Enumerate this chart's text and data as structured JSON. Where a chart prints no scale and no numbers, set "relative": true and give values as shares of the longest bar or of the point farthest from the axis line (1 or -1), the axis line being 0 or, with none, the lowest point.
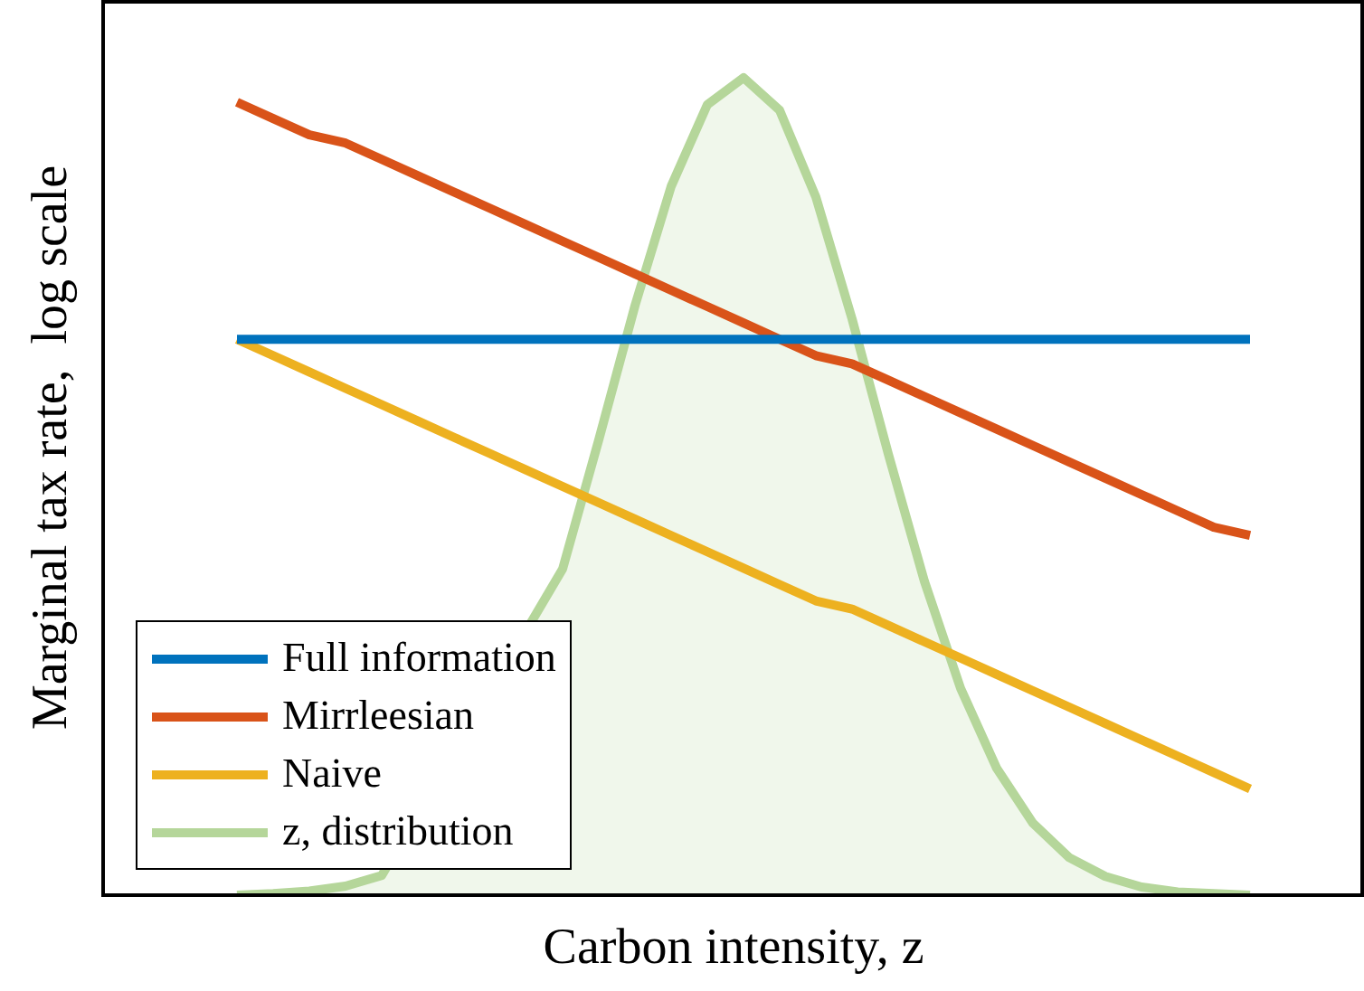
{
  "chart_data": {
    "type": "line",
    "relative": true,
    "xlabel": "Carbon intensity, z",
    "ylabel": "Marginal tax rate,  log scale",
    "legend": "bottom left",
    "marker": "none",
    "categories": [
      null,
      null,
      null,
      null,
      null,
      null,
      null,
      null,
      null,
      null,
      null,
      null,
      null,
      null,
      null,
      null,
      null,
      null,
      null,
      null,
      null,
      null,
      null,
      null,
      null,
      null,
      null,
      null,
      null
    ],
    "series": [
      {
        "name": "Full information",
        "color": "#0072bd",
        "values": [
          0.68,
          0.68,
          0.68,
          0.68,
          0.68,
          0.68,
          0.68,
          0.68,
          0.68,
          0.68,
          0.68,
          0.68,
          0.68,
          0.68,
          0.68,
          0.68,
          0.68,
          0.68,
          0.68,
          0.68,
          0.68,
          0.68,
          0.68,
          0.68,
          0.68,
          0.68,
          0.68,
          0.68,
          0.68
        ]
      },
      {
        "name": "Mirrleesian",
        "color": "#d95319",
        "values": [
          0.97,
          0.95,
          0.93,
          0.92,
          0.9,
          0.88,
          0.86,
          0.84,
          0.82,
          0.8,
          0.78,
          0.76,
          0.74,
          0.72,
          0.7,
          0.68,
          0.66,
          0.65,
          0.63,
          0.61,
          0.59,
          0.57,
          0.55,
          0.53,
          0.51,
          0.49,
          0.47,
          0.45,
          0.44
        ]
      },
      {
        "name": "Naive",
        "color": "#edb120",
        "values": [
          0.68,
          0.66,
          0.64,
          0.62,
          0.6,
          0.58,
          0.56,
          0.54,
          0.52,
          0.5,
          0.48,
          0.46,
          0.44,
          0.42,
          0.4,
          0.38,
          0.36,
          0.35,
          0.33,
          0.31,
          0.29,
          0.27,
          0.25,
          0.23,
          0.21,
          0.19,
          0.17,
          0.15,
          0.13
        ]
      },
      {
        "name": "z, distribution",
        "type": "area",
        "color": "#b5d69a",
        "values": [
          0,
          0.002,
          0.005,
          0.011,
          0.024,
          null,
          null,
          null,
          null,
          0.399,
          0.557,
          0.721,
          0.867,
          0.967,
          1,
          0.96,
          0.854,
          0.705,
          0.54,
          0.384,
          0.253,
          0.155,
          0.088,
          0.046,
          0.023,
          0.01,
          0.004,
          0.002,
          0
        ]
      }
    ]
  }
}
